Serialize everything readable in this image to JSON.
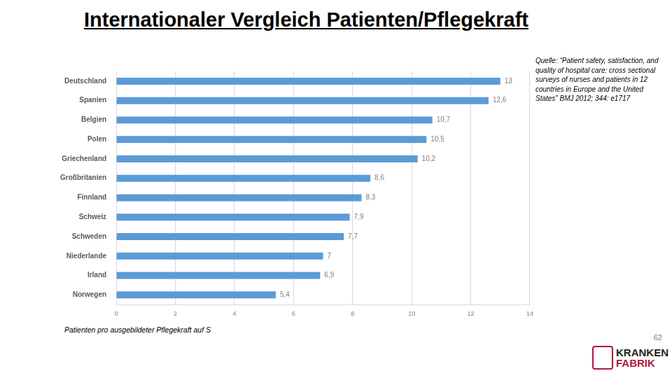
{
  "chart_data": {
    "type": "bar",
    "orientation": "horizontal",
    "title": "Internationaler Vergleich Patienten/Pflegekraft",
    "source": "Quelle: “Patient safety, satisfaction, and quality of hospital care: cross sectional surveys of nurses and patients in 12 countries in Europe and the United States” BMJ 2012; 344: e1717",
    "xlabel": "Patienten pro ausgebildeter Pflegekraft auf S",
    "page_number": "62",
    "logo": [
      "KRANKEN",
      "FABRIK"
    ],
    "categories": [
      "Deutschland",
      "Spanien",
      "Belgien",
      "Polen",
      "Griechenland",
      "Großbritanien",
      "Finnland",
      "Schweiz",
      "Schweden",
      "Niederlande",
      "Irland",
      "Norwegen"
    ],
    "values": [
      13,
      12.6,
      10.7,
      10.5,
      10.2,
      8.6,
      8.3,
      7.9,
      7.7,
      7,
      6.9,
      5.4
    ],
    "value_labels": [
      "13",
      "12,6",
      "10,7",
      "10,5",
      "10,2",
      "8,6",
      "8,3",
      "7,9",
      "7,7",
      "7",
      "6,9",
      "5,4"
    ],
    "data_labels": true,
    "color": "#5b9bd5",
    "xlim": [
      0,
      14
    ],
    "xticks": [
      0,
      2,
      4,
      6,
      8,
      10,
      12,
      14
    ],
    "grid": true
  }
}
